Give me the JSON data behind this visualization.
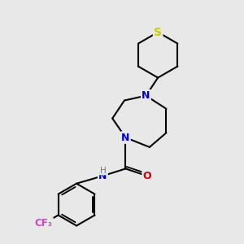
{
  "background_color": "#e8e8e8",
  "atom_colors": {
    "S": "#cccc00",
    "N": "#0000cc",
    "O": "#cc0000",
    "C": "#000000",
    "H": "#777777",
    "F": "#cc44cc"
  },
  "bond_color": "#000000",
  "bond_width": 1.5,
  "figsize": [
    3.0,
    3.0
  ],
  "dpi": 100
}
